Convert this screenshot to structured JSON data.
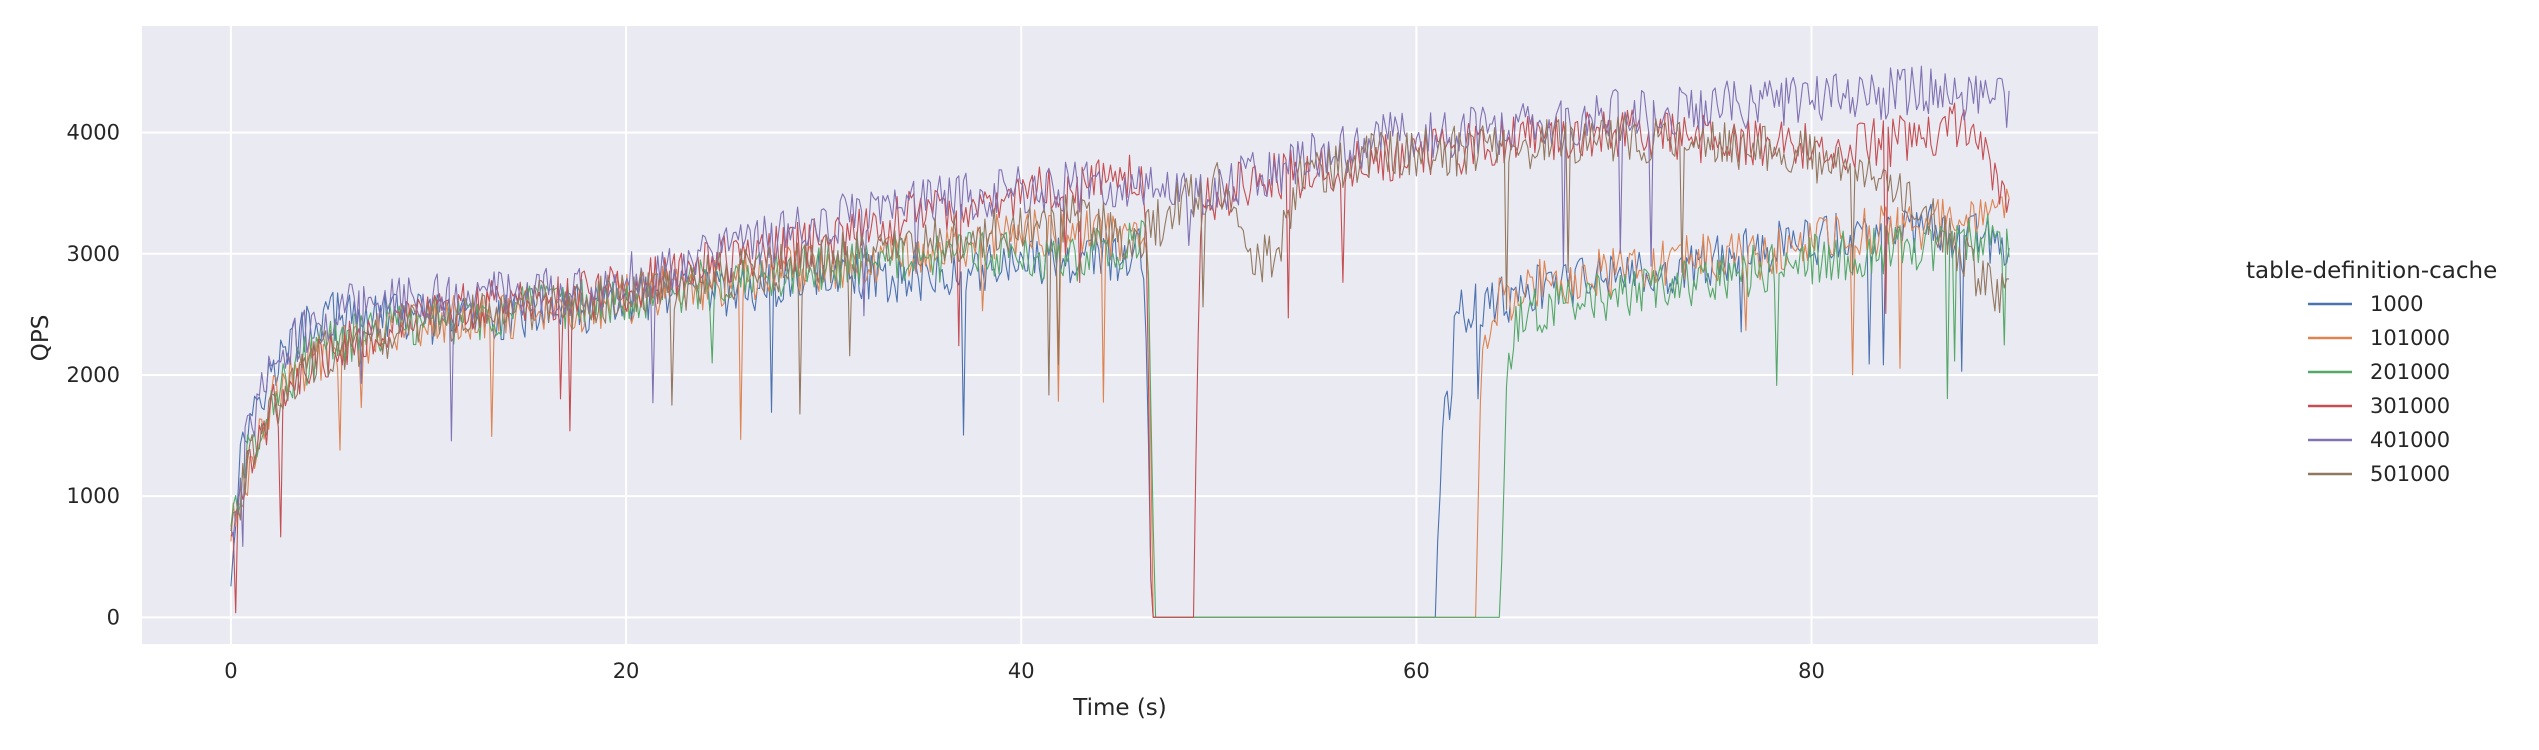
{
  "chart_data": {
    "type": "line",
    "title": "",
    "xlabel": "Time (s)",
    "ylabel": "QPS",
    "xlim": [
      -4.5,
      94.5
    ],
    "ylim": [
      -220,
      4880
    ],
    "x_ticks": [
      0,
      20,
      40,
      60,
      80
    ],
    "y_ticks": [
      0,
      1000,
      2000,
      3000,
      4000
    ],
    "grid": true,
    "legend": {
      "title": "table-definition-cache",
      "placement": "right"
    },
    "series": [
      {
        "name": "1000",
        "color": "#4c72b0",
        "points": [
          [
            0,
            350
          ],
          [
            0.3,
            1100
          ],
          [
            0.7,
            1500
          ],
          [
            1.2,
            1800
          ],
          [
            2,
            2000
          ],
          [
            3,
            2250
          ],
          [
            4,
            2400
          ],
          [
            5,
            2500
          ],
          [
            6,
            2450
          ],
          [
            8,
            2500
          ],
          [
            10,
            2450
          ],
          [
            14,
            2500
          ],
          [
            18,
            2550
          ],
          [
            22,
            2650
          ],
          [
            26,
            2700
          ],
          [
            30,
            2850
          ],
          [
            34,
            2800
          ],
          [
            38,
            2900
          ],
          [
            42,
            2950
          ],
          [
            44,
            2950
          ],
          [
            46,
            3000
          ],
          [
            46.3,
            2550
          ],
          [
            46.6,
            0
          ],
          [
            50,
            0
          ],
          [
            55,
            0
          ],
          [
            61,
            0
          ],
          [
            61.3,
            1600
          ],
          [
            61.7,
            1700
          ],
          [
            62,
            2500
          ],
          [
            64,
            2600
          ],
          [
            66,
            2700
          ],
          [
            70,
            2800
          ],
          [
            74,
            2900
          ],
          [
            78,
            3050
          ],
          [
            82,
            3150
          ],
          [
            86,
            3200
          ],
          [
            90,
            3100
          ]
        ]
      },
      {
        "name": "101000",
        "color": "#dd8452",
        "points": [
          [
            0,
            700
          ],
          [
            0.5,
            950
          ],
          [
            1,
            1300
          ],
          [
            2,
            1800
          ],
          [
            3,
            1950
          ],
          [
            4,
            2100
          ],
          [
            5,
            2200
          ],
          [
            6,
            2250
          ],
          [
            7,
            2300
          ],
          [
            8,
            2400
          ],
          [
            10,
            2450
          ],
          [
            14,
            2500
          ],
          [
            18,
            2550
          ],
          [
            22,
            2700
          ],
          [
            26,
            2800
          ],
          [
            30,
            2900
          ],
          [
            34,
            3000
          ],
          [
            38,
            3100
          ],
          [
            42,
            3200
          ],
          [
            45,
            3150
          ],
          [
            46.4,
            3200
          ],
          [
            46.7,
            0
          ],
          [
            50,
            0
          ],
          [
            55,
            0
          ],
          [
            63,
            0
          ],
          [
            63.3,
            2300
          ],
          [
            64,
            2600
          ],
          [
            66,
            2750
          ],
          [
            70,
            2850
          ],
          [
            74,
            2950
          ],
          [
            78,
            3000
          ],
          [
            82,
            3150
          ],
          [
            86,
            3250
          ],
          [
            90,
            3450
          ]
        ]
      },
      {
        "name": "201000",
        "color": "#55a868",
        "points": [
          [
            0,
            800
          ],
          [
            0.5,
            1100
          ],
          [
            1,
            1400
          ],
          [
            2,
            1800
          ],
          [
            3,
            2000
          ],
          [
            4,
            2150
          ],
          [
            5,
            2250
          ],
          [
            6,
            2300
          ],
          [
            8,
            2400
          ],
          [
            10,
            2450
          ],
          [
            14,
            2500
          ],
          [
            18,
            2600
          ],
          [
            22,
            2700
          ],
          [
            26,
            2800
          ],
          [
            30,
            2900
          ],
          [
            34,
            2950
          ],
          [
            38,
            3000
          ],
          [
            42,
            2950
          ],
          [
            45,
            3050
          ],
          [
            46.4,
            3100
          ],
          [
            46.8,
            0
          ],
          [
            50,
            0
          ],
          [
            55,
            0
          ],
          [
            60,
            0
          ],
          [
            64.2,
            0
          ],
          [
            64.6,
            2100
          ],
          [
            65,
            2400
          ],
          [
            66,
            2550
          ],
          [
            70,
            2650
          ],
          [
            74,
            2750
          ],
          [
            78,
            2900
          ],
          [
            82,
            3000
          ],
          [
            86,
            3050
          ],
          [
            90,
            3150
          ]
        ]
      },
      {
        "name": "301000",
        "color": "#c44e52",
        "points": [
          [
            0,
            700
          ],
          [
            0.5,
            1000
          ],
          [
            1,
            1300
          ],
          [
            2,
            1700
          ],
          [
            3,
            1900
          ],
          [
            4,
            2050
          ],
          [
            5,
            2200
          ],
          [
            6,
            2300
          ],
          [
            8,
            2400
          ],
          [
            10,
            2500
          ],
          [
            14,
            2600
          ],
          [
            18,
            2650
          ],
          [
            22,
            2800
          ],
          [
            26,
            3000
          ],
          [
            30,
            3100
          ],
          [
            34,
            3300
          ],
          [
            38,
            3450
          ],
          [
            42,
            3550
          ],
          [
            45,
            3700
          ],
          [
            46.3,
            3600
          ],
          [
            46.6,
            0
          ],
          [
            48.7,
            0
          ],
          [
            49.1,
            3450
          ],
          [
            50,
            3500
          ],
          [
            52,
            3600
          ],
          [
            55,
            3700
          ],
          [
            58,
            3800
          ],
          [
            62,
            3850
          ],
          [
            66,
            3950
          ],
          [
            70,
            4000
          ],
          [
            74,
            3950
          ],
          [
            78,
            3900
          ],
          [
            82,
            3900
          ],
          [
            86,
            3950
          ],
          [
            88,
            4100
          ],
          [
            90,
            3300
          ]
        ]
      },
      {
        "name": "401000",
        "color": "#8172b3",
        "points": [
          [
            0,
            750
          ],
          [
            0.5,
            1200
          ],
          [
            1,
            1600
          ],
          [
            2,
            2000
          ],
          [
            3,
            2250
          ],
          [
            4,
            2400
          ],
          [
            5,
            2500
          ],
          [
            6,
            2550
          ],
          [
            8,
            2650
          ],
          [
            10,
            2650
          ],
          [
            14,
            2650
          ],
          [
            18,
            2700
          ],
          [
            22,
            2900
          ],
          [
            26,
            3050
          ],
          [
            30,
            3250
          ],
          [
            34,
            3400
          ],
          [
            38,
            3500
          ],
          [
            42,
            3550
          ],
          [
            45,
            3550
          ],
          [
            48,
            3500
          ],
          [
            50,
            3550
          ],
          [
            52,
            3650
          ],
          [
            55,
            3800
          ],
          [
            58,
            3950
          ],
          [
            62,
            4000
          ],
          [
            66,
            4050
          ],
          [
            70,
            4150
          ],
          [
            74,
            4200
          ],
          [
            78,
            4250
          ],
          [
            82,
            4300
          ],
          [
            86,
            4350
          ],
          [
            90,
            4250
          ]
        ]
      },
      {
        "name": "501000",
        "color": "#937860",
        "points": [
          [
            0,
            700
          ],
          [
            0.5,
            1000
          ],
          [
            1,
            1300
          ],
          [
            2,
            1700
          ],
          [
            3,
            1900
          ],
          [
            4,
            2050
          ],
          [
            5,
            2200
          ],
          [
            6,
            2250
          ],
          [
            8,
            2350
          ],
          [
            10,
            2450
          ],
          [
            14,
            2550
          ],
          [
            18,
            2600
          ],
          [
            22,
            2700
          ],
          [
            26,
            2850
          ],
          [
            30,
            2950
          ],
          [
            34,
            3050
          ],
          [
            38,
            3150
          ],
          [
            42,
            3300
          ],
          [
            44,
            3250
          ],
          [
            46,
            3100
          ],
          [
            48,
            3400
          ],
          [
            50,
            3550
          ],
          [
            51,
            3300
          ],
          [
            52,
            2900
          ],
          [
            53,
            3050
          ],
          [
            54,
            3600
          ],
          [
            56,
            3700
          ],
          [
            58,
            3800
          ],
          [
            62,
            3850
          ],
          [
            66,
            3900
          ],
          [
            70,
            3950
          ],
          [
            74,
            3900
          ],
          [
            78,
            3850
          ],
          [
            80,
            3800
          ],
          [
            84,
            3600
          ],
          [
            86,
            3350
          ],
          [
            88,
            2900
          ],
          [
            90,
            2600
          ]
        ]
      }
    ]
  }
}
